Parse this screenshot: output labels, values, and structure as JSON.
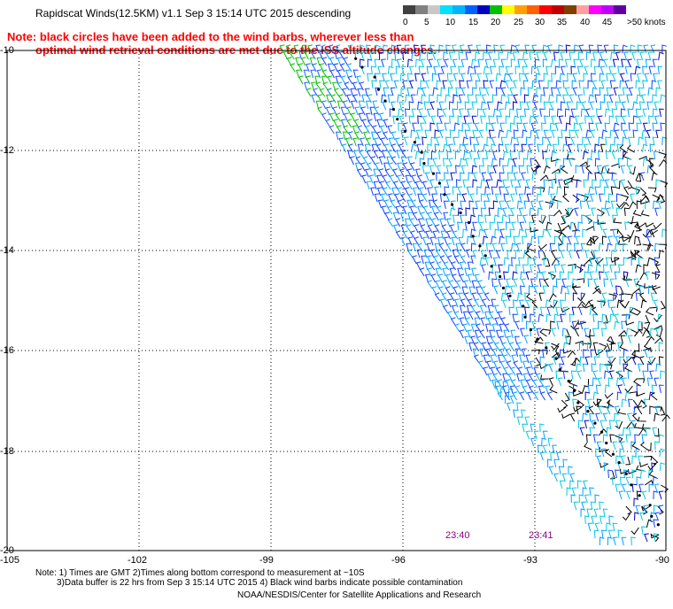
{
  "header": {
    "title": "Rapidscat Winds(12.5KM) v1.1 Sep  3 15:14 UTC 2015 descending"
  },
  "notes": {
    "line1": "Note: black circles have been added to the wind barbs, wherever less than",
    "line2": "optimal wind retrieval conditions are met due to the ISS altitude changes."
  },
  "legend": {
    "colors": [
      "#404040",
      "#808080",
      "#c8c8c8",
      "#00e0ff",
      "#00b4ff",
      "#0060ff",
      "#0000c0",
      "#00c000",
      "#ffff00",
      "#ffa000",
      "#ff6000",
      "#ff0000",
      "#c00000",
      "#804000",
      "#ffa0a0",
      "#ff00ff",
      "#c000ff",
      "#6000a0"
    ],
    "labels": [
      "0",
      "5",
      "10",
      "15",
      "20",
      "25",
      "30",
      "35",
      "40",
      "45",
      ">50 knots"
    ]
  },
  "map": {
    "y_ticks": [
      "-10",
      "-12",
      "-14",
      "-16",
      "-18",
      "-20"
    ],
    "x_ticks": [
      "-105",
      "-102",
      "-99",
      "-96",
      "-93",
      "-90"
    ],
    "time_labels": [
      "23:40",
      "23:41"
    ]
  },
  "footer": {
    "line1": "Note: 1) Times are GMT 2)Times along bottom correspond to measurement at ~10S",
    "line2": "3)Data buffer is 22 hrs from Sep  3 15:14 UTC 2015 4) Black wind barbs indicate possible contamination",
    "line3": "NOAA/NESDIS/Center for Satellite Applications and Research"
  }
}
